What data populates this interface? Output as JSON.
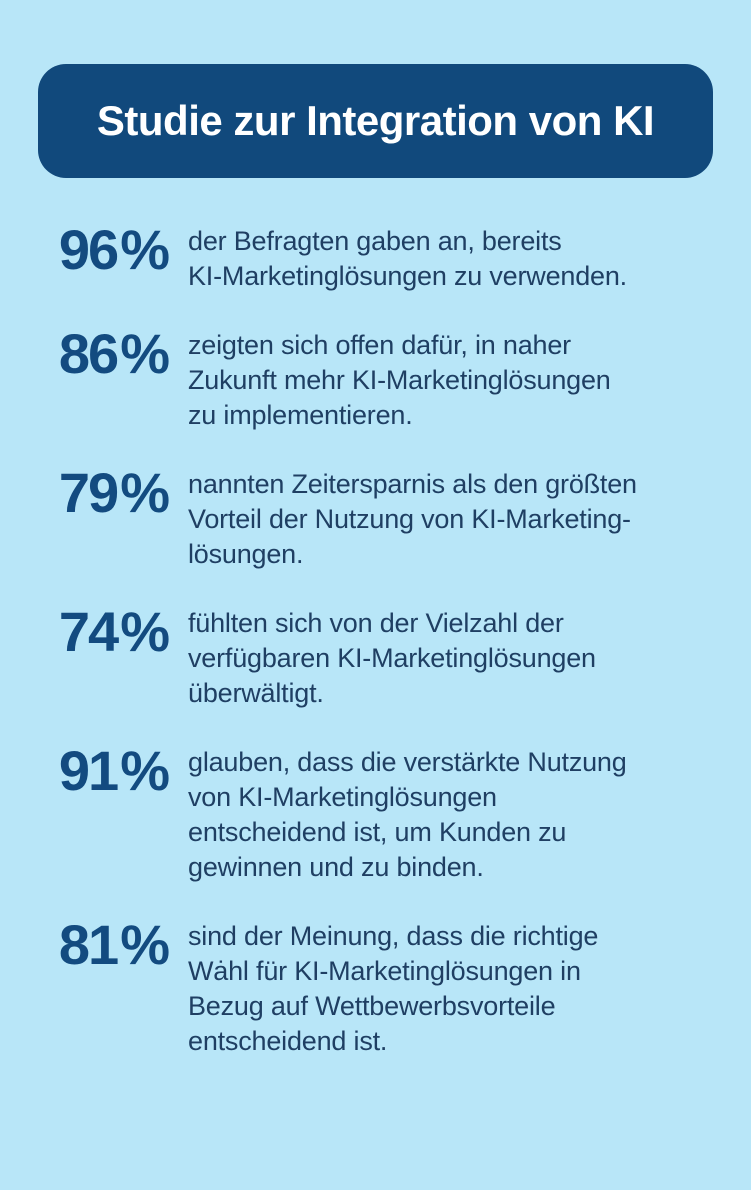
{
  "page": {
    "background_color": "#b8e6f8"
  },
  "header": {
    "title": "Studie zur Integration von KI",
    "background_color": "#11497c",
    "text_color": "#ffffff"
  },
  "colors": {
    "stat_value": "#134b80",
    "stat_text": "#1f3f63"
  },
  "stats": [
    {
      "value": "96",
      "unit": "%",
      "text": "der Befragten gaben an, bereits\nKI-Marketinglösungen zu verwenden."
    },
    {
      "value": "86",
      "unit": "%",
      "text": "zeigten sich offen dafür, in naher\nZukunft mehr KI-Marketinglösungen\nzu implementieren."
    },
    {
      "value": "79",
      "unit": "%",
      "text": "nannten Zeitersparnis als den größten\nVorteil der Nutzung von KI-Marketing-\nlösungen."
    },
    {
      "value": "74",
      "unit": "%",
      "text": "fühlten sich von der Vielzahl der\nverfügbaren KI-Marketinglösungen\nüberwältigt."
    },
    {
      "value": "91",
      "unit": "%",
      "text": "glauben, dass die verstärkte Nutzung\nvon KI-Marketinglösungen\nentscheidend ist, um Kunden zu\ngewinnen und zu binden."
    },
    {
      "value": "81",
      "unit": "%",
      "text": "sind der Meinung, dass die richtige\nWȧhl für KI-Marketinglösungen in\nBezug auf Wettbewerbsvorteile\nentscheidend ist."
    }
  ],
  "chart_data": {
    "type": "table",
    "title": "Studie zur Integration von KI",
    "categories": [
      "der Befragten gaben an, bereits KI-Marketinglösungen zu verwenden.",
      "zeigten sich offen dafür, in naher Zukunft mehr KI-Marketinglösungen zu implementieren.",
      "nannten Zeitersparnis als den größten Vorteil der Nutzung von KI-Marketinglösungen.",
      "fühlten sich von der Vielzahl der verfügbaren KI-Marketinglösungen überwältigt.",
      "glauben, dass die verstärkte Nutzung von KI-Marketinglösungen entscheidend ist, um Kunden zu gewinnen und zu binden.",
      "sind der Meinung, dass die richtige Wȧhl für KI-Marketinglösungen in Bezug auf Wettbewerbsvorteile entscheidend ist."
    ],
    "values": [
      96,
      86,
      79,
      74,
      91,
      81
    ],
    "unit": "%"
  }
}
